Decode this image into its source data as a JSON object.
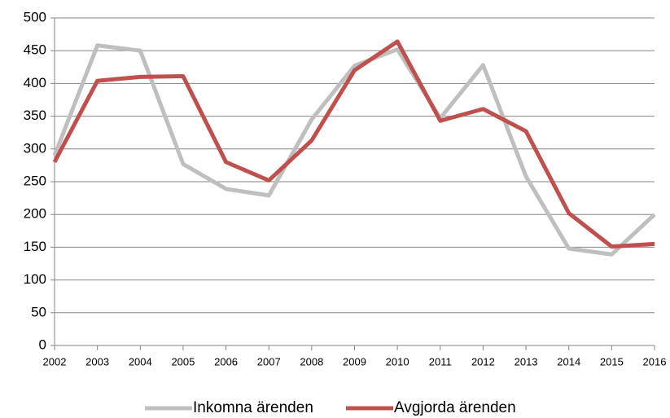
{
  "chart_data": {
    "type": "line",
    "categories": [
      "2002",
      "2003",
      "2004",
      "2005",
      "2006",
      "2007",
      "2008",
      "2009",
      "2010",
      "2011",
      "2012",
      "2013",
      "2014",
      "2015",
      "2016"
    ],
    "series": [
      {
        "name": "Inkomna ärenden",
        "color": "#bfbfbf",
        "values": [
          290,
          458,
          450,
          277,
          239,
          229,
          345,
          427,
          452,
          347,
          428,
          258,
          148,
          139,
          200
        ]
      },
      {
        "name": "Avgjorda ärenden",
        "color": "#c0504d",
        "values": [
          280,
          404,
          410,
          411,
          280,
          252,
          313,
          420,
          464,
          343,
          361,
          327,
          202,
          151,
          155
        ]
      }
    ],
    "ylim": [
      0,
      500
    ],
    "yticks": [
      0,
      50,
      100,
      150,
      200,
      250,
      300,
      350,
      400,
      450,
      500
    ],
    "grid": true,
    "legend": "bottom"
  }
}
